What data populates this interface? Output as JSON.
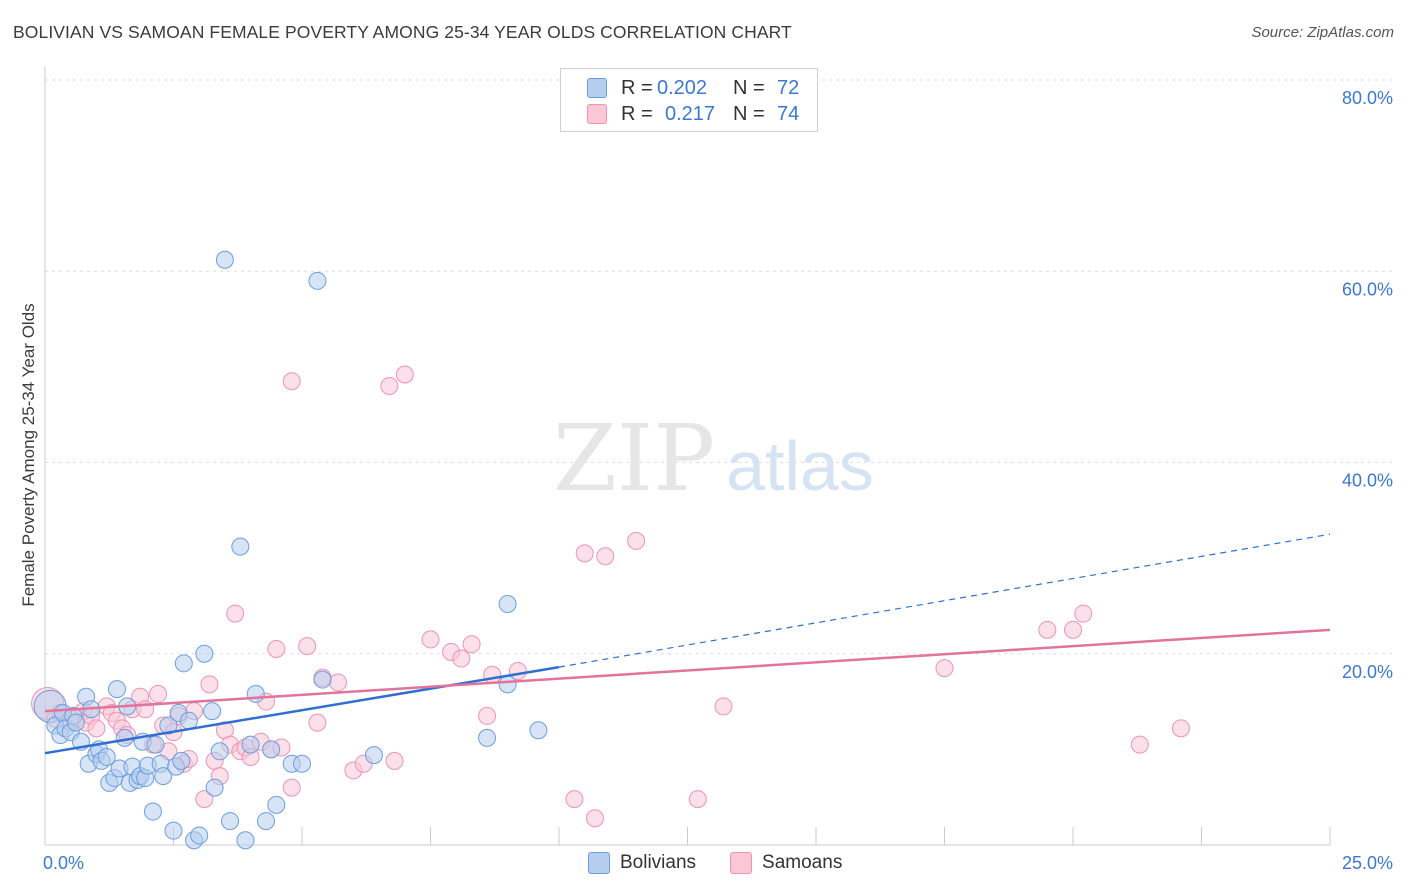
{
  "title": "BOLIVIAN VS SAMOAN FEMALE POVERTY AMONG 25-34 YEAR OLDS CORRELATION CHART",
  "source": "Source: ZipAtlas.com",
  "watermark": {
    "zip": "ZIP",
    "atlas": "atlas"
  },
  "legend": {
    "rows": [
      {
        "r_label": "R =",
        "r_value": "0.202",
        "n_label": "N =",
        "n_value": "72"
      },
      {
        "r_label": "R =",
        "r_value": "0.217",
        "n_label": "N =",
        "n_value": "74"
      }
    ]
  },
  "bottom_legend": {
    "series1": "Bolivians",
    "series2": "Samoans"
  },
  "colors": {
    "bolivians_fill": "#b5cdef",
    "bolivians_stroke": "#6d9de0",
    "bolivians_line": "#2f6fd1",
    "samoans_fill": "#fac7d7",
    "samoans_stroke": "#ee94b1",
    "samoans_line": "#e2739a",
    "axis_text": "#3a78d4",
    "grid": "#dddddd"
  },
  "chart_data": {
    "type": "scatter",
    "title": "BOLIVIAN VS SAMOAN FEMALE POVERTY AMONG 25-34 YEAR OLDS CORRELATION CHART",
    "xlabel": "",
    "ylabel": "Female Poverty Among 25-34 Year Olds",
    "xlim": [
      0,
      25
    ],
    "ylim": [
      0,
      80
    ],
    "x_tick_labels": [
      "0.0%",
      "25.0%"
    ],
    "y_ticks": [
      20,
      40,
      60,
      80
    ],
    "y_tick_labels": [
      "20.0%",
      "40.0%",
      "60.0%",
      "80.0%"
    ],
    "grid": true,
    "legend_position": "top-center",
    "series": [
      {
        "name": "Bolivians",
        "R": 0.202,
        "N": 72,
        "trend": {
          "x0": 0,
          "y0": 9.6,
          "x1": 10,
          "y1": 18.6,
          "dash_to_x": 25,
          "dash_to_y": 32.5
        },
        "points": [
          [
            0.1,
            14.5
          ],
          [
            0.2,
            12.5
          ],
          [
            0.3,
            11.5
          ],
          [
            0.35,
            13.8
          ],
          [
            0.4,
            12.2
          ],
          [
            0.5,
            11.8
          ],
          [
            0.55,
            13.5
          ],
          [
            0.6,
            12.8
          ],
          [
            0.7,
            10.8
          ],
          [
            0.8,
            15.5
          ],
          [
            0.85,
            8.5
          ],
          [
            0.9,
            14.2
          ],
          [
            1.0,
            9.5
          ],
          [
            1.05,
            10.0
          ],
          [
            1.1,
            8.8
          ],
          [
            1.2,
            9.2
          ],
          [
            1.25,
            6.5
          ],
          [
            1.35,
            7.0
          ],
          [
            1.4,
            16.3
          ],
          [
            1.45,
            8.0
          ],
          [
            1.55,
            11.2
          ],
          [
            1.6,
            14.5
          ],
          [
            1.65,
            6.5
          ],
          [
            1.7,
            8.2
          ],
          [
            1.8,
            6.8
          ],
          [
            1.85,
            7.2
          ],
          [
            1.9,
            10.8
          ],
          [
            1.95,
            7.0
          ],
          [
            2.0,
            8.3
          ],
          [
            2.1,
            3.5
          ],
          [
            2.15,
            10.5
          ],
          [
            2.25,
            8.5
          ],
          [
            2.3,
            7.2
          ],
          [
            2.4,
            12.5
          ],
          [
            2.5,
            1.5
          ],
          [
            2.55,
            8.2
          ],
          [
            2.6,
            13.8
          ],
          [
            2.65,
            8.8
          ],
          [
            2.7,
            19.0
          ],
          [
            2.8,
            13.0
          ],
          [
            2.9,
            0.5
          ],
          [
            3.0,
            1.0
          ],
          [
            3.1,
            20.0
          ],
          [
            3.25,
            14.0
          ],
          [
            3.3,
            6.0
          ],
          [
            3.4,
            9.8
          ],
          [
            3.5,
            61.2
          ],
          [
            3.6,
            2.5
          ],
          [
            3.8,
            31.2
          ],
          [
            3.9,
            0.5
          ],
          [
            4.0,
            10.5
          ],
          [
            4.1,
            15.8
          ],
          [
            4.3,
            2.5
          ],
          [
            4.4,
            10.0
          ],
          [
            4.5,
            4.2
          ],
          [
            4.8,
            8.5
          ],
          [
            5.0,
            8.5
          ],
          [
            5.3,
            59.0
          ],
          [
            5.4,
            17.3
          ],
          [
            6.4,
            9.4
          ],
          [
            8.6,
            11.2
          ],
          [
            9.0,
            25.2
          ],
          [
            9.0,
            16.8
          ],
          [
            9.6,
            12.0
          ]
        ]
      },
      {
        "name": "Samoans",
        "R": 0.217,
        "N": 74,
        "trend": {
          "x0": 0,
          "y0": 14.0,
          "x1": 25,
          "y1": 22.5
        },
        "points": [
          [
            0.05,
            14.8
          ],
          [
            0.2,
            13.2
          ],
          [
            0.3,
            13.8
          ],
          [
            0.5,
            12.8
          ],
          [
            0.6,
            13.2
          ],
          [
            0.75,
            14.0
          ],
          [
            0.8,
            12.8
          ],
          [
            0.9,
            13.5
          ],
          [
            1.0,
            12.2
          ],
          [
            1.2,
            14.5
          ],
          [
            1.3,
            13.8
          ],
          [
            1.4,
            13.0
          ],
          [
            1.5,
            12.2
          ],
          [
            1.6,
            11.5
          ],
          [
            1.7,
            14.2
          ],
          [
            1.85,
            15.5
          ],
          [
            1.95,
            14.2
          ],
          [
            2.1,
            10.5
          ],
          [
            2.2,
            15.8
          ],
          [
            2.3,
            12.5
          ],
          [
            2.4,
            9.8
          ],
          [
            2.5,
            11.8
          ],
          [
            2.6,
            13.5
          ],
          [
            2.7,
            8.5
          ],
          [
            2.8,
            9.0
          ],
          [
            2.9,
            14.0
          ],
          [
            3.1,
            4.8
          ],
          [
            3.2,
            16.8
          ],
          [
            3.3,
            8.8
          ],
          [
            3.4,
            7.2
          ],
          [
            3.5,
            12.0
          ],
          [
            3.6,
            10.5
          ],
          [
            3.7,
            24.2
          ],
          [
            3.8,
            9.8
          ],
          [
            3.9,
            10.2
          ],
          [
            4.0,
            9.2
          ],
          [
            4.2,
            10.8
          ],
          [
            4.3,
            15.0
          ],
          [
            4.4,
            10.0
          ],
          [
            4.5,
            20.5
          ],
          [
            4.6,
            10.2
          ],
          [
            4.8,
            6.0
          ],
          [
            5.1,
            20.8
          ],
          [
            5.3,
            12.8
          ],
          [
            5.4,
            17.5
          ],
          [
            5.7,
            17.0
          ],
          [
            4.8,
            48.5
          ],
          [
            6.0,
            7.8
          ],
          [
            6.2,
            8.5
          ],
          [
            6.8,
            8.8
          ],
          [
            6.7,
            48.0
          ],
          [
            7.0,
            49.2
          ],
          [
            7.5,
            21.5
          ],
          [
            7.9,
            20.2
          ],
          [
            8.1,
            19.5
          ],
          [
            8.3,
            21.0
          ],
          [
            8.6,
            13.5
          ],
          [
            8.7,
            17.8
          ],
          [
            9.2,
            18.2
          ],
          [
            10.3,
            4.8
          ],
          [
            10.5,
            30.5
          ],
          [
            10.7,
            2.8
          ],
          [
            10.9,
            30.2
          ],
          [
            11.5,
            31.8
          ],
          [
            12.7,
            4.8
          ],
          [
            13.2,
            14.5
          ],
          [
            17.5,
            18.5
          ],
          [
            19.5,
            22.5
          ],
          [
            20.0,
            22.5
          ],
          [
            20.2,
            24.2
          ],
          [
            21.3,
            10.5
          ],
          [
            22.1,
            12.2
          ]
        ]
      }
    ]
  }
}
